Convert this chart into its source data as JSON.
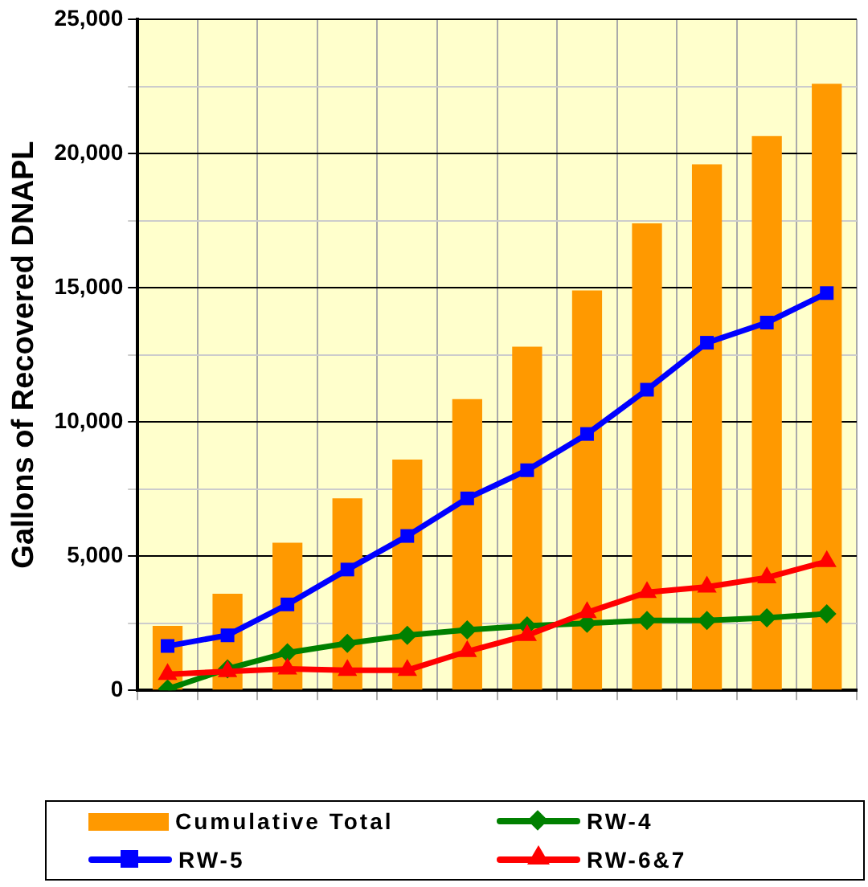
{
  "chart_data": {
    "type": "bar",
    "ylabel": "Gallons of Recovered DNAPL",
    "categories": [
      null,
      null,
      null,
      null,
      null,
      null,
      null,
      null,
      null,
      null,
      null,
      null
    ],
    "series": [
      {
        "name": "Cumulative Total",
        "color": "#ff9900",
        "values": [
          2400,
          3600,
          5500,
          7150,
          8600,
          10850,
          12800,
          14900,
          17400,
          19600,
          20650,
          22600
        ]
      },
      {
        "name": "RW-4",
        "type": "line",
        "color": "#008000",
        "marker": "diamond",
        "values": [
          50,
          800,
          1400,
          1750,
          2050,
          2250,
          2400,
          2500,
          2600,
          2600,
          2700,
          2850
        ]
      },
      {
        "name": "RW-5",
        "type": "line",
        "color": "#0000ff",
        "marker": "square",
        "values": [
          1650,
          2050,
          3200,
          4500,
          5750,
          7150,
          8200,
          9550,
          11200,
          12950,
          13700,
          14800
        ]
      },
      {
        "name": "RW-6&7",
        "type": "line",
        "color": "#ff0000",
        "marker": "triangle",
        "values": [
          600,
          700,
          800,
          750,
          750,
          1450,
          2050,
          2900,
          3650,
          3850,
          4200,
          4800
        ]
      }
    ],
    "ylim": [
      0,
      25000
    ],
    "yticks": [
      0,
      {
        "value": 5000,
        "label": "5,000"
      },
      {
        "value": 10000,
        "label": "10,000"
      },
      {
        "value": 15000,
        "label": "15,000"
      },
      {
        "value": 20000,
        "label": "20,000"
      },
      {
        "value": 25000,
        "label": "25,000"
      }
    ],
    "grid": true,
    "legend": "bottom"
  }
}
